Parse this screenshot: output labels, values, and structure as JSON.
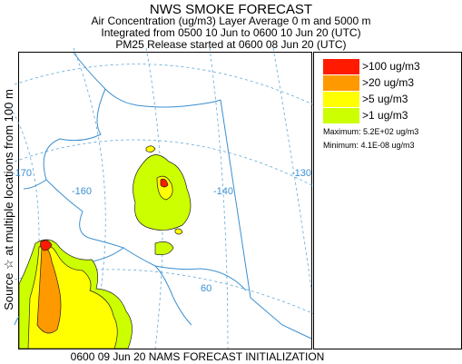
{
  "header": {
    "title": "NWS SMOKE FORECAST",
    "line1": "Air Concentration (ug/m3) Layer Average    0 m and  5000 m",
    "line2": "Integrated from 0500 10 Jun to 0600 10 Jun 20 (UTC)",
    "line3": "PM25 Release started at 0600 08 Jun 20 (UTC)"
  },
  "side_label": "Source ☆  at multiple locations   from   100 m",
  "map": {
    "longitude_labels": [
      "-170",
      "-160",
      "-140",
      "-130"
    ],
    "latitude_labels": [
      "60"
    ],
    "colors": {
      "coastline": "#3a8fd0",
      "graticule": "#60a8d8",
      "contour": "#222222"
    }
  },
  "legend": {
    "items": [
      {
        "label": ">100 ug/m3",
        "color": "#ff1a00"
      },
      {
        "label": ">20 ug/m3",
        "color": "#ff9900"
      },
      {
        "label": ">5 ug/m3",
        "color": "#ffff00"
      },
      {
        "label": ">1 ug/m3",
        "color": "#ccff00"
      }
    ],
    "maximum": "Maximum: 5.2E+02 ug/m3",
    "minimum": "Minimum: 4.1E-08 ug/m3"
  },
  "footer": "0600 09 Jun 20 NAMS FORECAST INITIALIZATION"
}
